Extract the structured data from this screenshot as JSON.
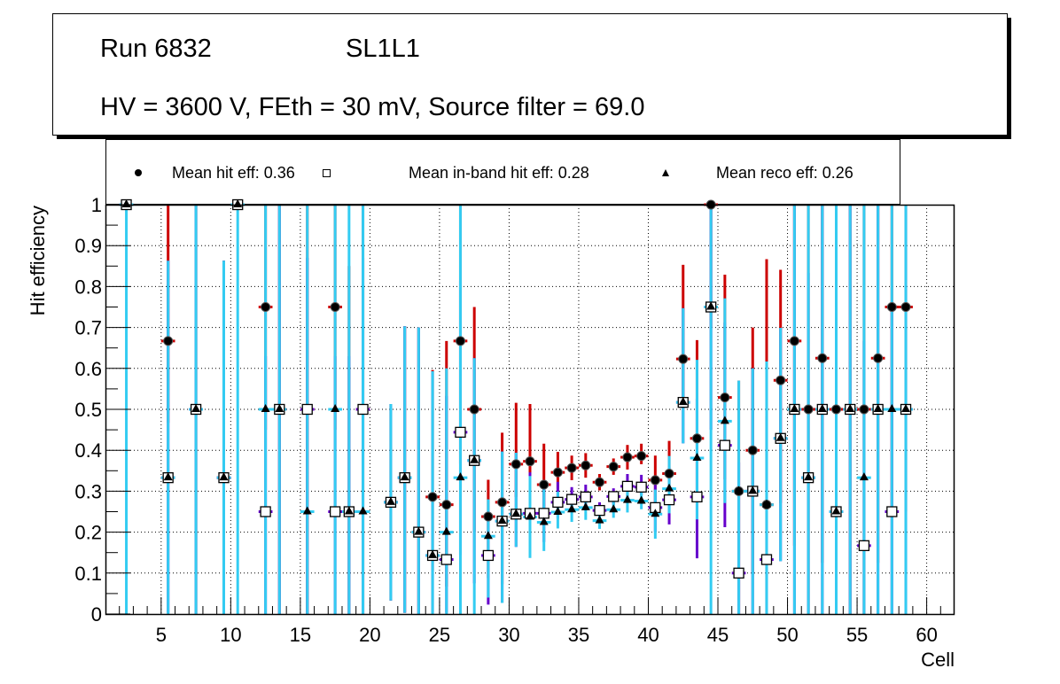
{
  "header": {
    "line1_run": "Run 6832",
    "line1_layer": "SL1L1",
    "line2": "HV = 3600 V, FEth = 30 mV, Source filter = 69.0"
  },
  "chart_data": {
    "type": "scatter",
    "title": "",
    "xlabel": "Cell",
    "ylabel": "Hit efficiency",
    "xlim": [
      1,
      62
    ],
    "ylim": [
      0,
      1
    ],
    "grid": true,
    "legend_position": "top",
    "x_ticks": [
      "5",
      "10",
      "15",
      "20",
      "25",
      "30",
      "35",
      "40",
      "45",
      "50",
      "55",
      "60"
    ],
    "y_ticks": [
      "0",
      "0.1",
      "0.2",
      "0.3",
      "0.4",
      "0.5",
      "0.6",
      "0.7",
      "0.8",
      "0.9",
      "1"
    ],
    "colors": {
      "hit_err": "#cc0000",
      "inband_err": "#6600cc",
      "reco_err": "#33ccf2",
      "marker": "#000000"
    },
    "legend": [
      {
        "marker": "circle",
        "label": "Mean hit  eff: 0.36"
      },
      {
        "marker": "open-square",
        "label": "Mean in-band hit eff: 0.28"
      },
      {
        "marker": "triangle",
        "label": "Mean reco eff: 0.26"
      }
    ],
    "x": [
      2,
      5,
      7,
      9,
      10,
      12,
      13,
      15,
      17,
      18,
      19,
      21,
      22,
      23,
      24,
      25,
      26,
      27,
      28,
      29,
      30,
      31,
      32,
      33,
      34,
      35,
      36,
      37,
      38,
      39,
      40,
      41,
      42,
      43,
      44,
      45,
      46,
      47,
      48,
      49,
      50,
      51,
      52,
      53,
      54,
      55,
      56,
      57,
      58
    ],
    "series": [
      {
        "name": "Mean hit eff",
        "marker": "circle",
        "values": [
          1,
          0.667,
          0.5,
          0.333,
          1,
          0.75,
          0.5,
          0.5,
          0.75,
          0.25,
          0.5,
          0.273,
          0.333,
          0.2,
          0.286,
          0.267,
          0.667,
          0.5,
          0.238,
          0.273,
          0.366,
          0.373,
          0.316,
          0.346,
          0.357,
          0.363,
          0.322,
          0.36,
          0.383,
          0.386,
          0.327,
          0.343,
          0.623,
          0.429,
          1,
          0.529,
          0.3,
          0.4,
          0.267,
          0.571,
          0.667,
          0.5,
          0.625,
          0.5,
          0.5,
          0.5,
          0.625,
          0.75,
          0.75
        ],
        "err_lo": [
          0.0,
          0.2,
          0.5,
          0.33,
          0.0,
          0.3,
          0.5,
          0.5,
          0.3,
          0.25,
          0.5,
          0.24,
          0.33,
          0.2,
          0.18,
          0.2,
          0.3,
          0.3,
          0.15,
          0.2,
          0.08,
          0.1,
          0.07,
          0.04,
          0.03,
          0.03,
          0.02,
          0.02,
          0.03,
          0.02,
          0.06,
          0.06,
          0.1,
          0.15,
          0.3,
          0.2,
          0.3,
          0.3,
          0.27,
          0.3,
          0.5,
          0.5,
          0.5,
          0.5,
          0.5,
          0.5,
          0.5,
          0.5,
          0.5
        ],
        "err_hi": [
          0.0,
          0.333,
          0.5,
          0.53,
          0.0,
          0.25,
          0.5,
          0.5,
          0.25,
          0.6,
          0.5,
          0.24,
          0.37,
          0.5,
          0.31,
          0.4,
          0.333,
          0.25,
          0.09,
          0.17,
          0.15,
          0.14,
          0.1,
          0.05,
          0.03,
          0.03,
          0.02,
          0.02,
          0.03,
          0.03,
          0.06,
          0.08,
          0.23,
          0.24,
          0.0,
          0.3,
          0.27,
          0.3,
          0.6,
          0.27,
          0.333,
          0.5,
          0.375,
          0.5,
          0.5,
          0.5,
          0.375,
          0.25,
          0.25
        ]
      },
      {
        "name": "Mean in-band hit eff",
        "marker": "open-square",
        "values": [
          1,
          0.333,
          0.5,
          0.333,
          1,
          0.25,
          0.5,
          0.5,
          0.25,
          0.25,
          0.5,
          0.273,
          0.333,
          0.2,
          0.143,
          0.133,
          0.444,
          0.375,
          0.143,
          0.227,
          0.244,
          0.246,
          0.246,
          0.273,
          0.28,
          0.286,
          0.253,
          0.287,
          0.312,
          0.31,
          0.26,
          0.279,
          0.517,
          0.286,
          0.75,
          0.412,
          0.1,
          0.3,
          0.133,
          0.429,
          0.5,
          0.333,
          0.5,
          0.25,
          0.5,
          0.167,
          0.5,
          0.25,
          0.5
        ],
        "err_lo": [
          0.0,
          0.33,
          0.5,
          0.33,
          0.0,
          0.25,
          0.5,
          0.5,
          0.25,
          0.25,
          0.5,
          0.24,
          0.33,
          0.2,
          0.14,
          0.13,
          0.3,
          0.3,
          0.12,
          0.2,
          0.08,
          0.1,
          0.07,
          0.04,
          0.03,
          0.03,
          0.02,
          0.02,
          0.03,
          0.02,
          0.06,
          0.06,
          0.1,
          0.15,
          0.3,
          0.2,
          0.1,
          0.3,
          0.13,
          0.3,
          0.5,
          0.33,
          0.5,
          0.25,
          0.5,
          0.167,
          0.5,
          0.25,
          0.5
        ],
        "err_hi": [
          0.0,
          0.53,
          0.5,
          0.53,
          0.0,
          0.38,
          0.5,
          0.37,
          0.38,
          0.38,
          0.37,
          0.24,
          0.37,
          0.5,
          0.45,
          0.4,
          0.37,
          0.25,
          0.09,
          0.17,
          0.15,
          0.1,
          0.08,
          0.05,
          0.03,
          0.03,
          0.02,
          0.02,
          0.03,
          0.03,
          0.06,
          0.08,
          0.23,
          0.24,
          0.25,
          0.3,
          0.27,
          0.3,
          0.35,
          0.27,
          0.5,
          0.5,
          0.5,
          0.5,
          0.5,
          0.5,
          0.5,
          0.5,
          0.5
        ]
      },
      {
        "name": "Mean reco eff",
        "marker": "triangle",
        "values": [
          1,
          0.333,
          0.5,
          0.333,
          1,
          0.5,
          0.5,
          0.25,
          0.5,
          0.25,
          0.25,
          0.273,
          0.333,
          0.2,
          0.143,
          0.2,
          0.333,
          0.375,
          0.19,
          0.227,
          0.244,
          0.237,
          0.224,
          0.249,
          0.255,
          0.26,
          0.228,
          0.255,
          0.278,
          0.276,
          0.244,
          0.306,
          0.517,
          0.381,
          0.75,
          0.471,
          0.3,
          0.3,
          0.267,
          0.429,
          0.5,
          0.333,
          0.5,
          0.25,
          0.5,
          0.333,
          0.5,
          0.5,
          0.5
        ],
        "err_lo": [
          1.0,
          0.333,
          0.5,
          0.333,
          1.0,
          0.5,
          0.5,
          0.25,
          0.5,
          0.25,
          0.25,
          0.24,
          0.33,
          0.2,
          0.143,
          0.2,
          0.333,
          0.375,
          0.15,
          0.2,
          0.08,
          0.1,
          0.07,
          0.04,
          0.03,
          0.03,
          0.02,
          0.02,
          0.03,
          0.02,
          0.06,
          0.06,
          0.1,
          0.15,
          0.75,
          0.2,
          0.3,
          0.3,
          0.267,
          0.3,
          0.5,
          0.333,
          0.5,
          0.25,
          0.5,
          0.333,
          0.5,
          0.5,
          0.5
        ],
        "err_hi": [
          0.0,
          0.53,
          0.5,
          0.53,
          0.0,
          0.5,
          0.5,
          0.75,
          0.5,
          0.75,
          0.75,
          0.24,
          0.37,
          0.5,
          0.45,
          0.4,
          0.667,
          0.25,
          0.09,
          0.17,
          0.15,
          0.1,
          0.08,
          0.05,
          0.03,
          0.03,
          0.02,
          0.02,
          0.03,
          0.03,
          0.06,
          0.08,
          0.23,
          0.24,
          0.25,
          0.3,
          0.27,
          0.3,
          0.35,
          0.27,
          0.5,
          0.667,
          0.5,
          0.75,
          0.5,
          0.667,
          0.5,
          0.5,
          0.5
        ]
      }
    ]
  }
}
